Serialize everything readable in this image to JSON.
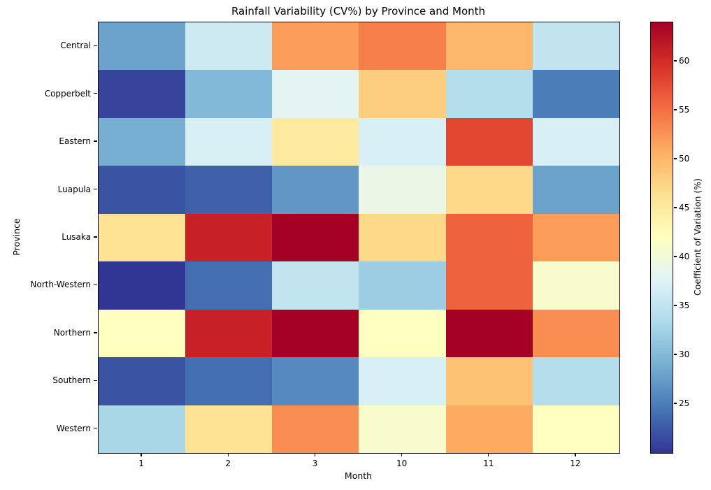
{
  "chart_data": {
    "type": "heatmap",
    "title": "Rainfall Variability (CV%) by Province and Month",
    "xlabel": "Month",
    "ylabel": "Province",
    "x_tick_labels": [
      "1",
      "2",
      "3",
      "10",
      "11",
      "12"
    ],
    "y_tick_labels": [
      "Central",
      "Copperbelt",
      "Eastern",
      "Luapula",
      "Lusaka",
      "North-Western",
      "Northern",
      "Southern",
      "Western"
    ],
    "series": [
      {
        "name": "Central",
        "values": [
          28,
          36,
          52,
          54,
          50,
          35
        ]
      },
      {
        "name": "Copperbelt",
        "values": [
          21,
          30,
          38,
          48,
          34,
          25
        ]
      },
      {
        "name": "Eastern",
        "values": [
          29,
          37,
          45,
          37,
          58,
          37
        ]
      },
      {
        "name": "Luapula",
        "values": [
          22,
          23,
          27,
          39,
          47,
          28
        ]
      },
      {
        "name": "Lusaka",
        "values": [
          46,
          61,
          64,
          47,
          56,
          52
        ]
      },
      {
        "name": "North-Western",
        "values": [
          20,
          24,
          35,
          32,
          56,
          41
        ]
      },
      {
        "name": "Northern",
        "values": [
          42,
          61,
          64,
          42,
          64,
          53
        ]
      },
      {
        "name": "Southern",
        "values": [
          22,
          24,
          26,
          37,
          49,
          34
        ]
      },
      {
        "name": "Western",
        "values": [
          33,
          46,
          53,
          41,
          51,
          42
        ]
      }
    ],
    "vmin": 20,
    "vmax": 64,
    "colormap": "RdYlBu_r",
    "colormap_stops": [
      "#313695",
      "#4575b4",
      "#74add1",
      "#abd9e9",
      "#e0f3f8",
      "#ffffbf",
      "#fee090",
      "#fdae61",
      "#f46d43",
      "#d73027",
      "#a50026"
    ],
    "grid": false,
    "legend": false,
    "colorbar": {
      "label": "Coefficient of Variation (%)",
      "ticks": [
        25,
        30,
        35,
        40,
        45,
        50,
        55,
        60
      ],
      "position": "right"
    }
  }
}
